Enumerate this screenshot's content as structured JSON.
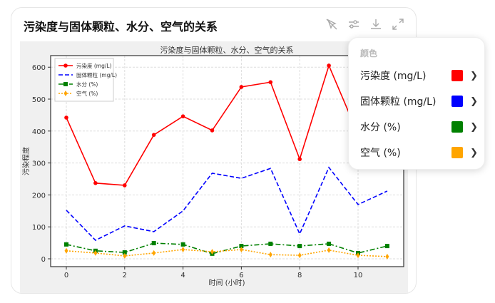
{
  "card": {
    "title": "污染度与固体颗粒、水分、空气的关系"
  },
  "toolbar": {
    "icons": [
      "pointer-off-icon",
      "sliders-icon",
      "download-icon",
      "expand-icon"
    ]
  },
  "popover": {
    "heading": "颜色",
    "items": [
      {
        "label": "污染度 (mg/L)",
        "color": "#ff0000"
      },
      {
        "label": "固体颗粒 (mg/L)",
        "color": "#0000ff"
      },
      {
        "label": "水分 (%)",
        "color": "#008000"
      },
      {
        "label": "空气 (%)",
        "color": "#ffa500"
      }
    ]
  },
  "chart_data": {
    "type": "line",
    "title": "污染度与固体颗粒、水分、空气的关系",
    "xlabel": "时间 (小时)",
    "ylabel": "污染程度",
    "x": [
      0,
      1,
      2,
      3,
      4,
      5,
      6,
      7,
      8,
      9,
      10,
      11
    ],
    "xticks": [
      0,
      2,
      4,
      6,
      8,
      10
    ],
    "yticks": [
      0,
      100,
      200,
      300,
      400,
      500,
      600
    ],
    "xlim": [
      -0.5,
      11.5
    ],
    "ylim": [
      -25,
      630
    ],
    "grid": true,
    "legend": "top-left",
    "series": [
      {
        "name": "污染度 (mg/L)",
        "color": "#ff0000",
        "style": "solid",
        "marker": "circle",
        "values": [
          442,
          237,
          230,
          388,
          446,
          402,
          538,
          553,
          312,
          605,
          390,
          null
        ]
      },
      {
        "name": "固体颗粒 (mg/L)",
        "color": "#0000ff",
        "style": "dashed",
        "marker": "none",
        "values": [
          152,
          58,
          103,
          85,
          150,
          268,
          252,
          283,
          78,
          286,
          170,
          212
        ]
      },
      {
        "name": "水分 (%)",
        "color": "#008000",
        "style": "dashdot",
        "marker": "square",
        "values": [
          45,
          25,
          20,
          49,
          45,
          16,
          40,
          47,
          40,
          47,
          18,
          40
        ]
      },
      {
        "name": "空气 (%)",
        "color": "#ffa500",
        "style": "dotted",
        "marker": "diamond",
        "values": [
          25,
          18,
          9,
          18,
          29,
          22,
          29,
          13,
          11,
          27,
          11,
          7
        ]
      }
    ]
  }
}
